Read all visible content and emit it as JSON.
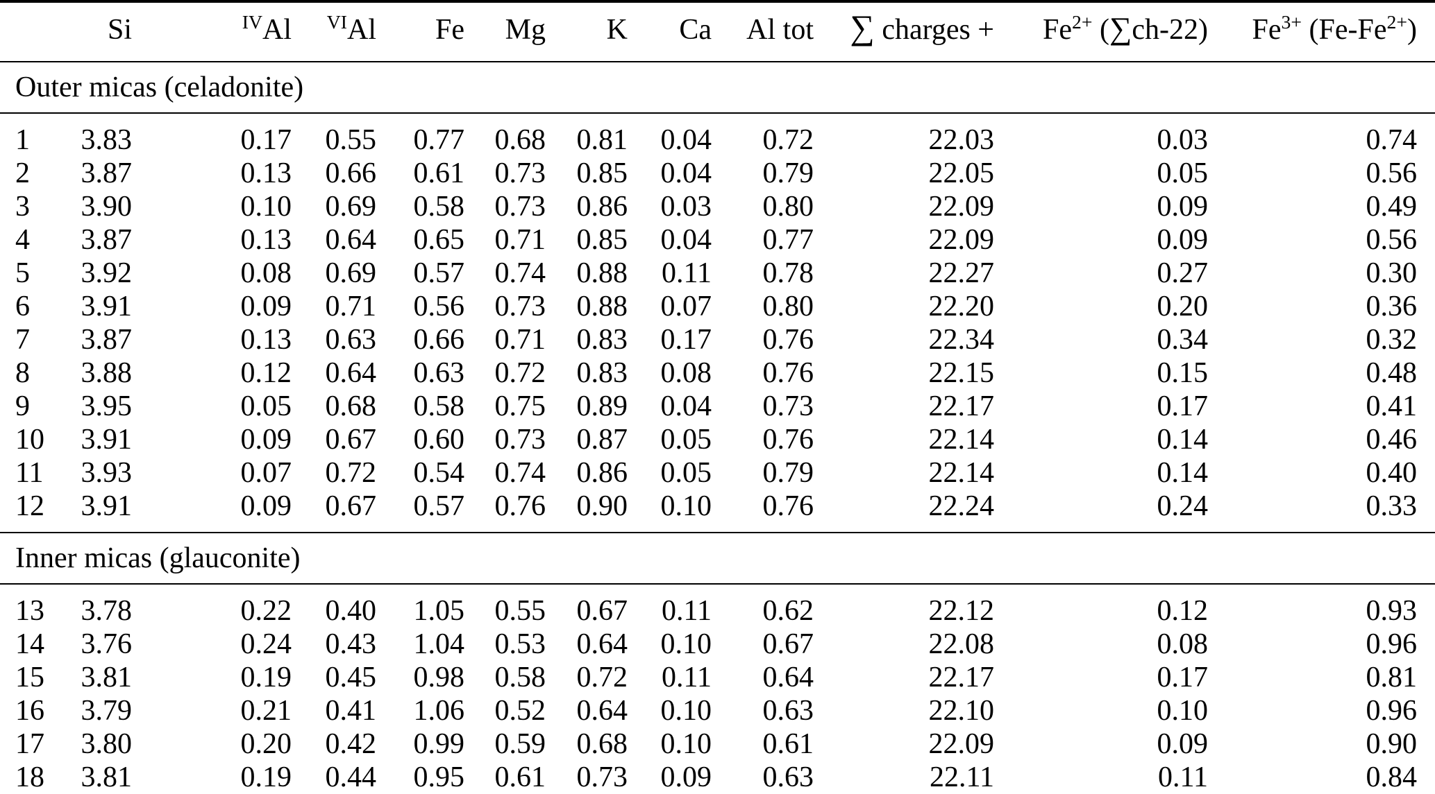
{
  "page": {
    "background": "#ffffff",
    "text_color": "#000000"
  },
  "table": {
    "columns": [
      {
        "key": "index",
        "label": "",
        "segments": []
      },
      {
        "key": "si",
        "label": "Si",
        "segments": [
          {
            "t": "Si"
          }
        ]
      },
      {
        "key": "al_iv",
        "label": "IVAl",
        "segments": [
          {
            "t": "IV",
            "cls": "sup"
          },
          {
            "t": "Al"
          }
        ]
      },
      {
        "key": "al_vi",
        "label": "VIAl",
        "segments": [
          {
            "t": "VI",
            "cls": "sup"
          },
          {
            "t": "Al"
          }
        ]
      },
      {
        "key": "fe",
        "label": "Fe",
        "segments": [
          {
            "t": "Fe"
          }
        ]
      },
      {
        "key": "mg",
        "label": "Mg",
        "segments": [
          {
            "t": "Mg"
          }
        ]
      },
      {
        "key": "k",
        "label": "K",
        "segments": [
          {
            "t": "K"
          }
        ]
      },
      {
        "key": "ca",
        "label": "Ca",
        "segments": [
          {
            "t": "Ca"
          }
        ]
      },
      {
        "key": "al_tot",
        "label": "Al tot",
        "segments": [
          {
            "t": "Al tot"
          }
        ]
      },
      {
        "key": "sum_charges",
        "label": "∑ charges +",
        "segments": [
          {
            "t": "∑",
            "cls": "sum"
          },
          {
            "t": " charges +"
          }
        ]
      },
      {
        "key": "fe2",
        "label": "Fe2+ (∑ch-22)",
        "segments": [
          {
            "t": "Fe"
          },
          {
            "t": "2+",
            "cls": "sup"
          },
          {
            "t": " ("
          },
          {
            "t": "∑",
            "cls": "sum-inline"
          },
          {
            "t": "ch-22)"
          }
        ]
      },
      {
        "key": "fe3",
        "label": "Fe3+ (Fe-Fe2+)",
        "segments": [
          {
            "t": "Fe"
          },
          {
            "t": "3+",
            "cls": "sup"
          },
          {
            "t": " (Fe-Fe"
          },
          {
            "t": "2+",
            "cls": "sup"
          },
          {
            "t": ")"
          }
        ]
      }
    ],
    "sections": [
      {
        "title": "Outer micas (celadonite)",
        "rows": [
          [
            "1",
            "3.83",
            "0.17",
            "0.55",
            "0.77",
            "0.68",
            "0.81",
            "0.04",
            "0.72",
            "22.03",
            "0.03",
            "0.74"
          ],
          [
            "2",
            "3.87",
            "0.13",
            "0.66",
            "0.61",
            "0.73",
            "0.85",
            "0.04",
            "0.79",
            "22.05",
            "0.05",
            "0.56"
          ],
          [
            "3",
            "3.90",
            "0.10",
            "0.69",
            "0.58",
            "0.73",
            "0.86",
            "0.03",
            "0.80",
            "22.09",
            "0.09",
            "0.49"
          ],
          [
            "4",
            "3.87",
            "0.13",
            "0.64",
            "0.65",
            "0.71",
            "0.85",
            "0.04",
            "0.77",
            "22.09",
            "0.09",
            "0.56"
          ],
          [
            "5",
            "3.92",
            "0.08",
            "0.69",
            "0.57",
            "0.74",
            "0.88",
            "0.11",
            "0.78",
            "22.27",
            "0.27",
            "0.30"
          ],
          [
            "6",
            "3.91",
            "0.09",
            "0.71",
            "0.56",
            "0.73",
            "0.88",
            "0.07",
            "0.80",
            "22.20",
            "0.20",
            "0.36"
          ],
          [
            "7",
            "3.87",
            "0.13",
            "0.63",
            "0.66",
            "0.71",
            "0.83",
            "0.17",
            "0.76",
            "22.34",
            "0.34",
            "0.32"
          ],
          [
            "8",
            "3.88",
            "0.12",
            "0.64",
            "0.63",
            "0.72",
            "0.83",
            "0.08",
            "0.76",
            "22.15",
            "0.15",
            "0.48"
          ],
          [
            "9",
            "3.95",
            "0.05",
            "0.68",
            "0.58",
            "0.75",
            "0.89",
            "0.04",
            "0.73",
            "22.17",
            "0.17",
            "0.41"
          ],
          [
            "10",
            "3.91",
            "0.09",
            "0.67",
            "0.60",
            "0.73",
            "0.87",
            "0.05",
            "0.76",
            "22.14",
            "0.14",
            "0.46"
          ],
          [
            "11",
            "3.93",
            "0.07",
            "0.72",
            "0.54",
            "0.74",
            "0.86",
            "0.05",
            "0.79",
            "22.14",
            "0.14",
            "0.40"
          ],
          [
            "12",
            "3.91",
            "0.09",
            "0.67",
            "0.57",
            "0.76",
            "0.90",
            "0.10",
            "0.76",
            "22.24",
            "0.24",
            "0.33"
          ]
        ]
      },
      {
        "title": "Inner micas (glauconite)",
        "rows": [
          [
            "13",
            "3.78",
            "0.22",
            "0.40",
            "1.05",
            "0.55",
            "0.67",
            "0.11",
            "0.62",
            "22.12",
            "0.12",
            "0.93"
          ],
          [
            "14",
            "3.76",
            "0.24",
            "0.43",
            "1.04",
            "0.53",
            "0.64",
            "0.10",
            "0.67",
            "22.08",
            "0.08",
            "0.96"
          ],
          [
            "15",
            "3.81",
            "0.19",
            "0.45",
            "0.98",
            "0.58",
            "0.72",
            "0.11",
            "0.64",
            "22.17",
            "0.17",
            "0.81"
          ],
          [
            "16",
            "3.79",
            "0.21",
            "0.41",
            "1.06",
            "0.52",
            "0.64",
            "0.10",
            "0.63",
            "22.10",
            "0.10",
            "0.96"
          ],
          [
            "17",
            "3.80",
            "0.20",
            "0.42",
            "0.99",
            "0.59",
            "0.68",
            "0.10",
            "0.61",
            "22.09",
            "0.09",
            "0.90"
          ],
          [
            "18",
            "3.81",
            "0.19",
            "0.44",
            "0.95",
            "0.61",
            "0.73",
            "0.09",
            "0.63",
            "22.11",
            "0.11",
            "0.84"
          ]
        ]
      }
    ]
  }
}
